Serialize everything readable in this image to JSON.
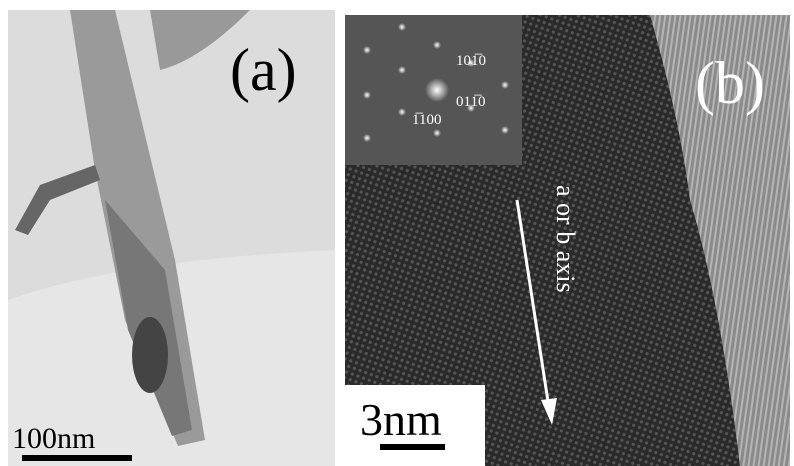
{
  "panel_a": {
    "label": "(a)",
    "scale_bar": "100nm"
  },
  "panel_b": {
    "label": "(b)",
    "scale_bar": "3nm",
    "axis_annotation": "a or b axis",
    "diffraction_indices": [
      "101̅0",
      "011̅0",
      "1̅100"
    ]
  }
}
